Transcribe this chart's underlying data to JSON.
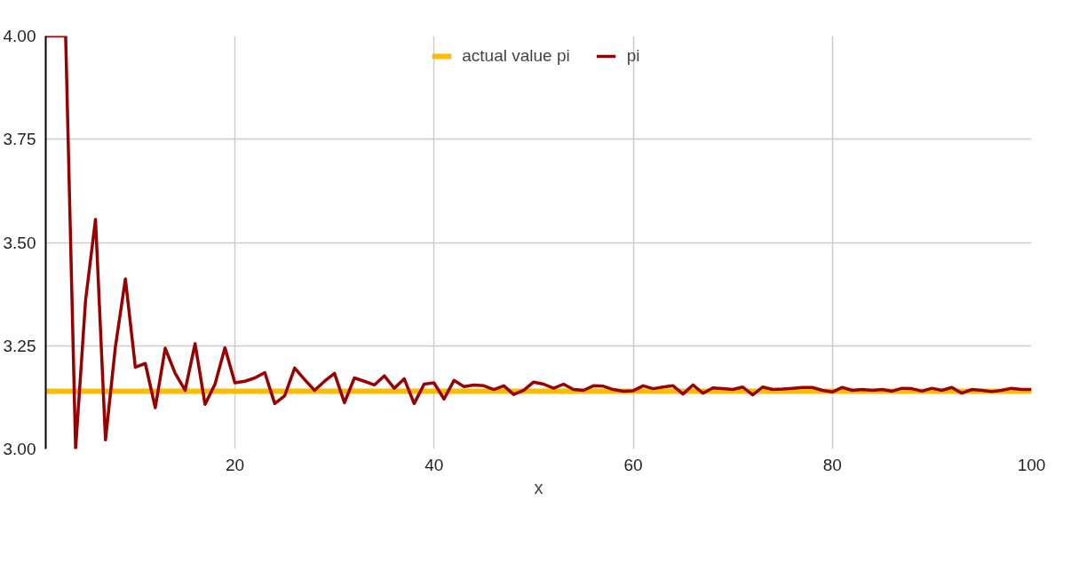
{
  "chart_data": {
    "type": "line",
    "xlabel": "x",
    "xlim": [
      1,
      100
    ],
    "ylim": [
      3.0,
      4.0
    ],
    "xticks": [
      20,
      40,
      60,
      80,
      100
    ],
    "yticks": [
      {
        "value": 3.0,
        "label": "3.00"
      },
      {
        "value": 3.25,
        "label": "3.25"
      },
      {
        "value": 3.5,
        "label": "3.50"
      },
      {
        "value": 3.75,
        "label": "3.75"
      },
      {
        "value": 4.0,
        "label": "4.00"
      }
    ],
    "grid": true,
    "legend": "top",
    "marker": "none",
    "line_style": "solid",
    "series": [
      {
        "name": "actual value pi",
        "color": "#fbbc04",
        "x": [
          1,
          100
        ],
        "values": [
          3.14,
          3.14
        ]
      },
      {
        "name": "pi",
        "color": "#990000",
        "x": [
          1,
          2,
          3,
          4,
          5,
          6,
          7,
          8,
          9,
          10,
          11,
          12,
          13,
          14,
          15,
          16,
          17,
          18,
          19,
          20,
          21,
          22,
          23,
          24,
          25,
          26,
          27,
          28,
          29,
          30,
          31,
          32,
          33,
          34,
          35,
          36,
          37,
          38,
          39,
          40,
          41,
          42,
          43,
          44,
          45,
          46,
          47,
          48,
          49,
          50,
          51,
          52,
          53,
          54,
          55,
          56,
          57,
          58,
          59,
          60,
          61,
          62,
          63,
          64,
          65,
          66,
          67,
          68,
          69,
          70,
          71,
          72,
          73,
          74,
          75,
          76,
          77,
          78,
          79,
          80,
          81,
          82,
          83,
          84,
          85,
          86,
          87,
          88,
          89,
          90,
          91,
          92,
          93,
          94,
          95,
          96,
          97,
          98,
          99,
          100
        ],
        "values": [
          4.0,
          4.0,
          4.0,
          3.0,
          3.36,
          3.556,
          3.022,
          3.248,
          3.412,
          3.198,
          3.207,
          3.1,
          3.244,
          3.183,
          3.142,
          3.255,
          3.108,
          3.157,
          3.245,
          3.16,
          3.164,
          3.172,
          3.185,
          3.11,
          3.129,
          3.196,
          3.168,
          3.142,
          3.164,
          3.183,
          3.112,
          3.172,
          3.164,
          3.155,
          3.177,
          3.147,
          3.17,
          3.11,
          3.157,
          3.16,
          3.121,
          3.166,
          3.151,
          3.155,
          3.153,
          3.144,
          3.153,
          3.132,
          3.142,
          3.162,
          3.157,
          3.147,
          3.157,
          3.144,
          3.142,
          3.153,
          3.152,
          3.144,
          3.14,
          3.141,
          3.153,
          3.146,
          3.15,
          3.153,
          3.133,
          3.155,
          3.135,
          3.148,
          3.146,
          3.144,
          3.15,
          3.131,
          3.15,
          3.144,
          3.145,
          3.147,
          3.149,
          3.149,
          3.142,
          3.138,
          3.149,
          3.142,
          3.144,
          3.142,
          3.144,
          3.14,
          3.147,
          3.146,
          3.14,
          3.147,
          3.142,
          3.149,
          3.135,
          3.144,
          3.142,
          3.139,
          3.142,
          3.147,
          3.144,
          3.144
        ]
      }
    ]
  }
}
